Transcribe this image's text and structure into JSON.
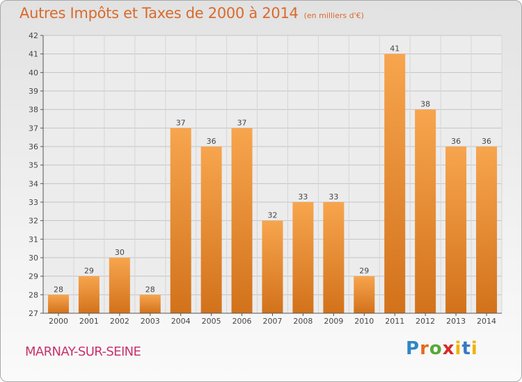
{
  "chart_data": {
    "type": "bar",
    "title": "Autres Impôts et Taxes de 2000 à 2014",
    "unit": "(en milliers d'€)",
    "categories": [
      "2000",
      "2001",
      "2002",
      "2003",
      "2004",
      "2005",
      "2006",
      "2007",
      "2008",
      "2009",
      "2010",
      "2011",
      "2012",
      "2013",
      "2014"
    ],
    "values": [
      28,
      29,
      30,
      28,
      37,
      36,
      37,
      32,
      33,
      33,
      29,
      41,
      38,
      36,
      36
    ],
    "ylim": [
      27,
      42
    ],
    "yticks": [
      27,
      28,
      29,
      30,
      31,
      32,
      33,
      34,
      35,
      36,
      37,
      38,
      39,
      40,
      41,
      42
    ],
    "grid": true,
    "bar_color_top": "#f7a54e",
    "bar_color_bottom": "#d2721b"
  },
  "commune": "MARNAY-SUR-SEINE",
  "logo": {
    "p": "P",
    "r": "r",
    "o": "o",
    "x": "x",
    "i": "i",
    "t": "t",
    "i2": "i"
  }
}
